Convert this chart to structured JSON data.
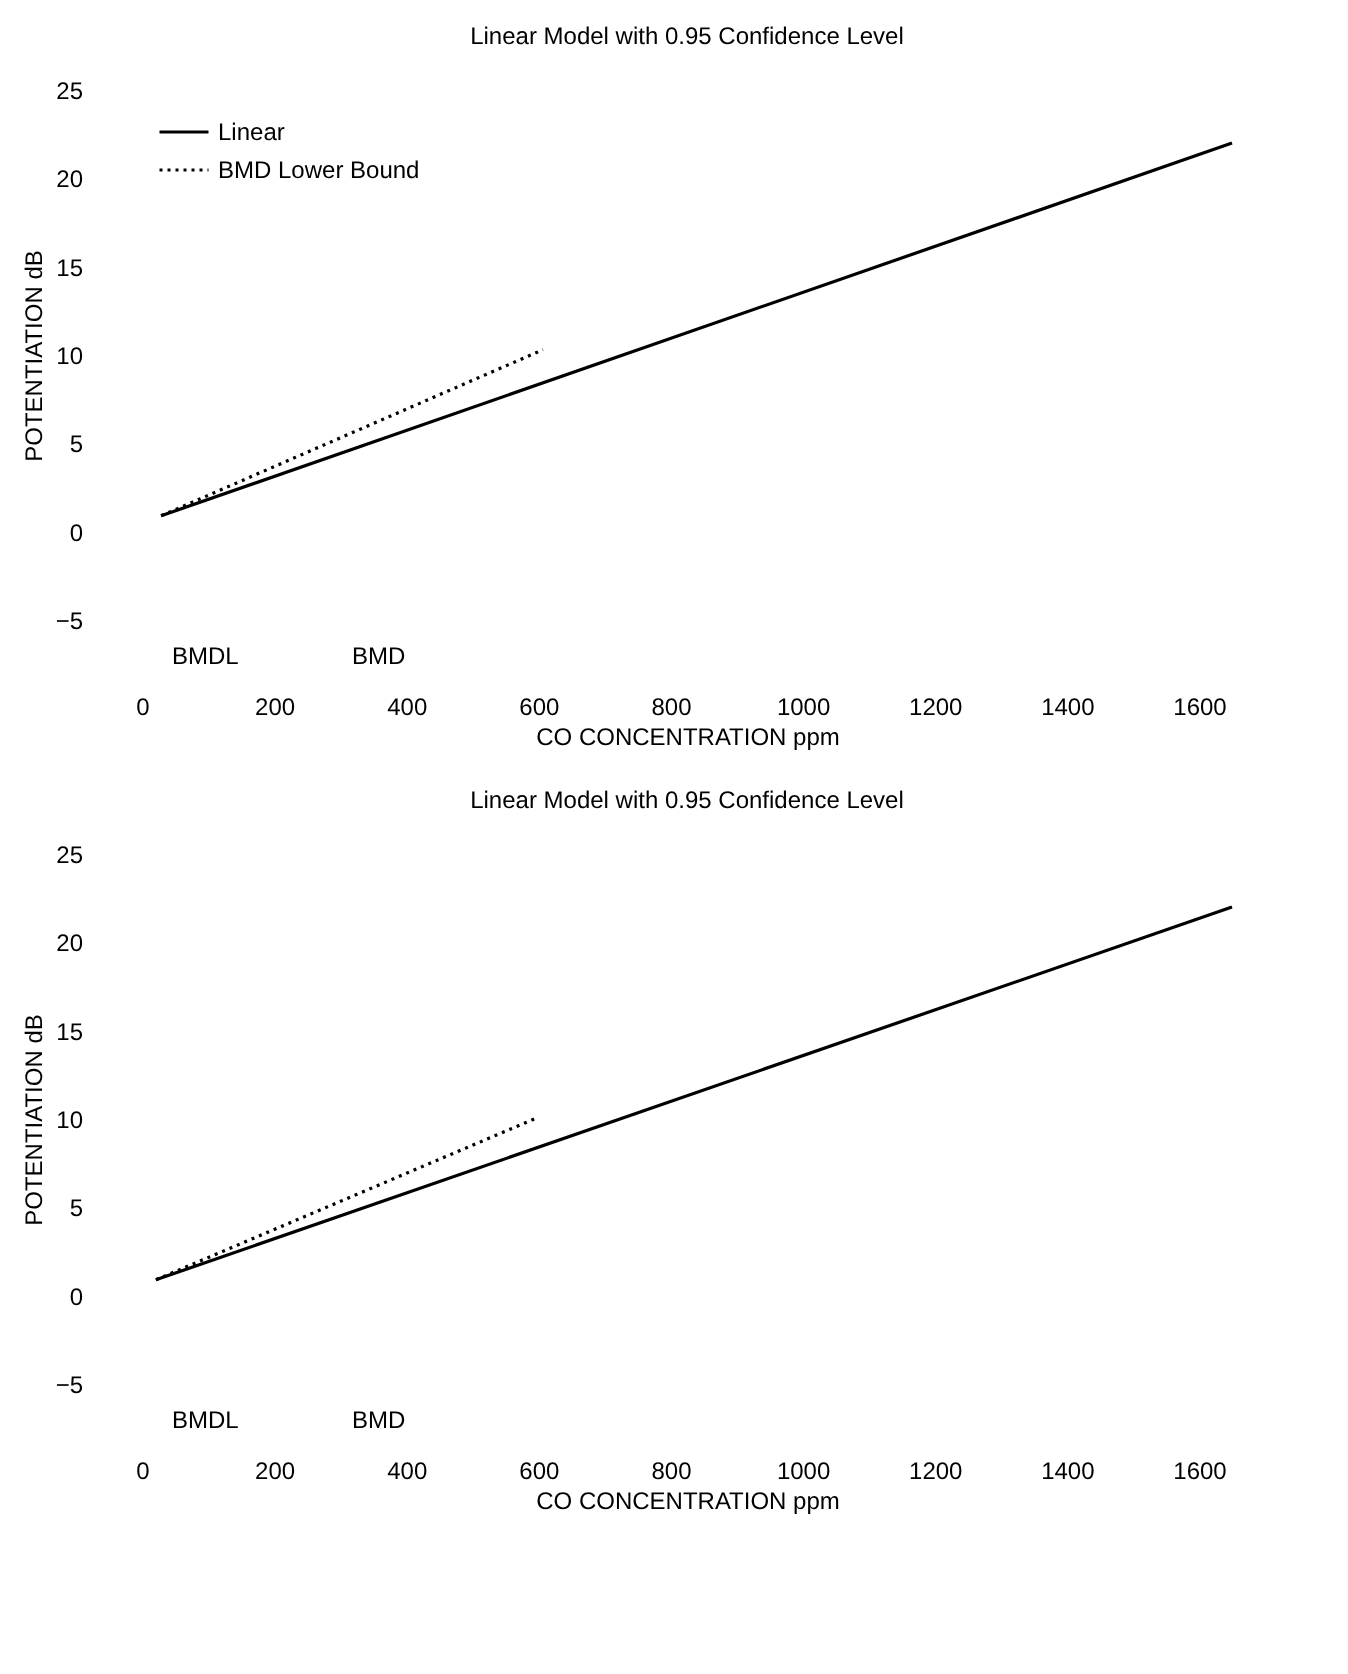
{
  "chart_data": [
    {
      "type": "line",
      "title": "Linear Model with 0.95 Confidence Level",
      "xlabel": "CO CONCENTRATION ppm",
      "ylabel": "POTENTIATION dB",
      "xlim": [
        0,
        1650
      ],
      "xticks": [
        0,
        200,
        400,
        600,
        800,
        1000,
        1200,
        1400,
        1600
      ],
      "ylim": [
        -5,
        25
      ],
      "yticks": [
        -5,
        0,
        5,
        10,
        15,
        20,
        25
      ],
      "series": [
        {
          "name": "Linear",
          "color": "#000000",
          "line_style": "solid",
          "x": [
            29,
            1650
          ],
          "values": [
            0.9,
            22
          ]
        },
        {
          "name": "BMD Lower Bound",
          "color": "#000000",
          "line_style": "dotted",
          "x": [
            29,
            607
          ],
          "values": [
            0.9,
            10.3
          ]
        }
      ],
      "annotations": [
        "BMDL",
        "BMD"
      ],
      "legend": "top left",
      "grid": false
    },
    {
      "type": "line",
      "title": "Linear Model with 0.95 Confidence Level",
      "xlabel": "CO CONCENTRATION ppm",
      "ylabel": "POTENTIATION dB",
      "xlim": [
        0,
        1650
      ],
      "xticks": [
        0,
        200,
        400,
        600,
        800,
        1000,
        1200,
        1400,
        1600
      ],
      "ylim": [
        -5,
        25
      ],
      "yticks": [
        -5,
        0,
        5,
        10,
        15,
        20,
        25
      ],
      "series": [
        {
          "name": "Linear",
          "color": "#000000",
          "line_style": "solid",
          "x": [
            21,
            1650
          ],
          "values": [
            0.9,
            22
          ]
        },
        {
          "name": "BMD Lower Bound",
          "color": "#000000",
          "line_style": "dotted",
          "x": [
            21,
            600
          ],
          "values": [
            0.9,
            10.1
          ]
        }
      ],
      "annotations": [
        "BMDL",
        "BMD"
      ],
      "legend": "top left",
      "grid": false
    }
  ]
}
